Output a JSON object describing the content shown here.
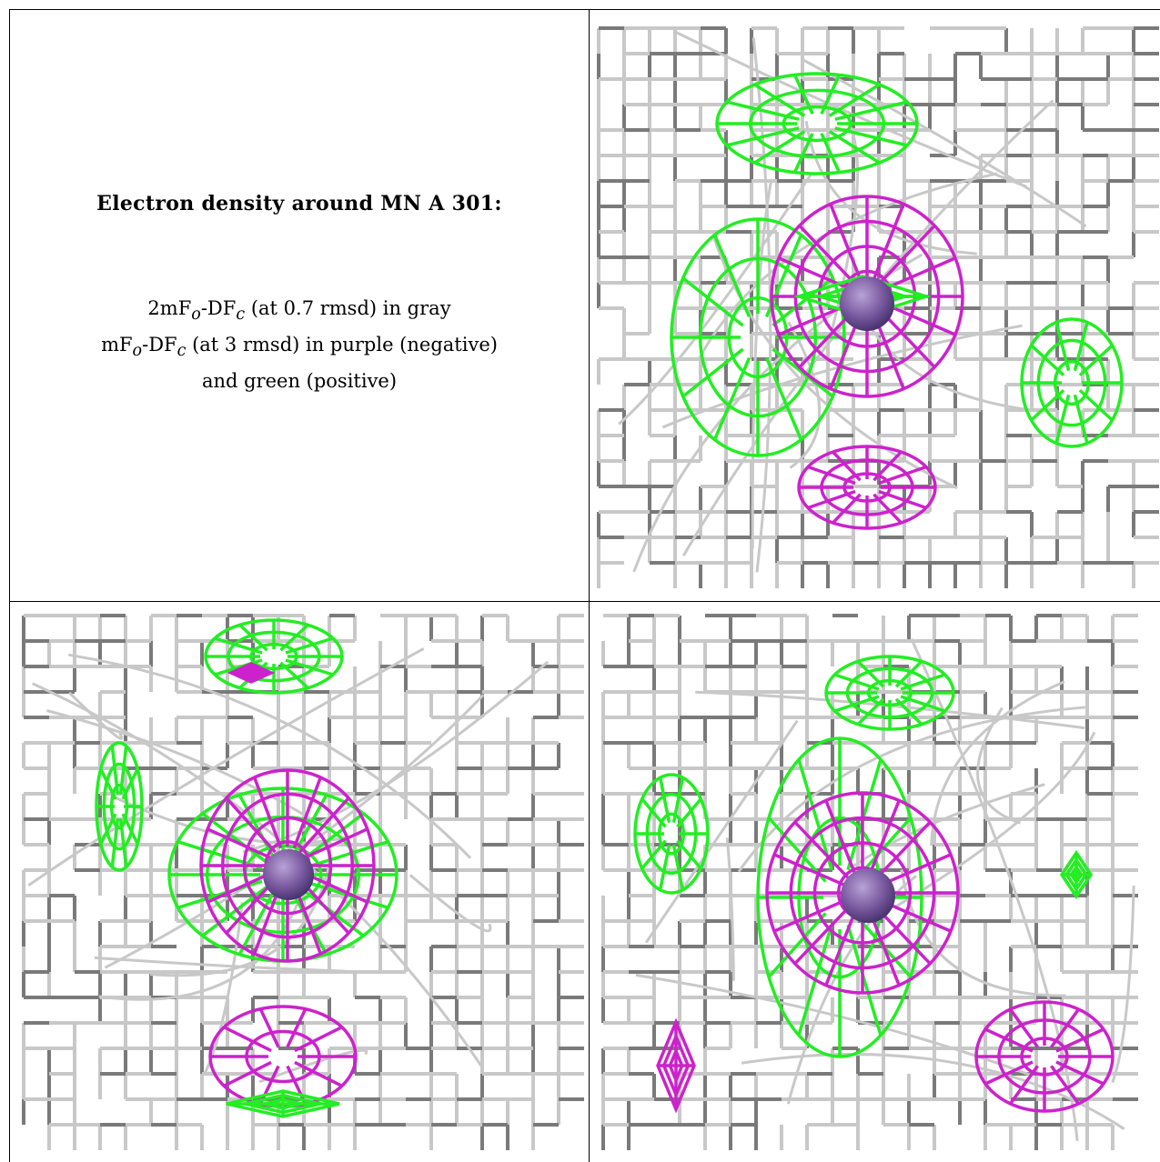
{
  "caption": {
    "title": "Electron density around MN A 301:",
    "line1": "2mFₒ-DFᴄ (at 0.7 rmsd) in gray",
    "line1_parts": {
      "a": "2mF",
      "sub1": "o",
      "b": "-DF",
      "sub2": "c",
      "c": " (at 0.7 rmsd) in gray"
    },
    "line2_parts": {
      "a": "mF",
      "sub1": "o",
      "b": "-DF",
      "sub2": "c",
      "c": " (at 3 rmsd) in purple (negative)"
    },
    "line3": "and green (positive)"
  },
  "colors": {
    "gray_mesh": "#c8c8c8",
    "gray_mesh_dark": "#7a7a7a",
    "green_mesh": "#22ee22",
    "purple_mesh": "#cc22cc",
    "atom": "#7a5aa0"
  }
}
